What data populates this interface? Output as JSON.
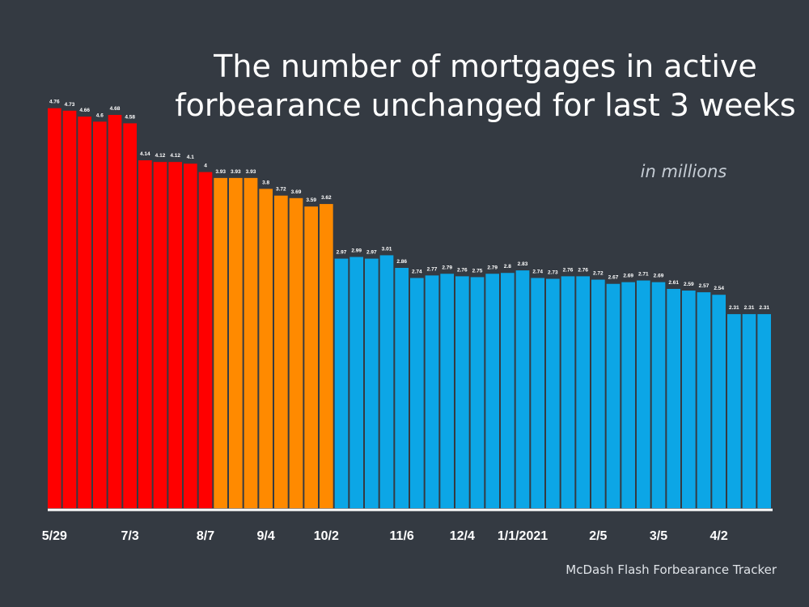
{
  "chart_data": {
    "type": "bar",
    "title_lines": [
      "The number of mortgages in active",
      "forbearance unchanged for last 3 weeks"
    ],
    "subtitle": "in millions",
    "source": "McDash Flash Forbearance Tracker",
    "values": [
      4.76,
      4.73,
      4.66,
      4.6,
      4.68,
      4.58,
      4.14,
      4.12,
      4.12,
      4.1,
      4,
      3.93,
      3.93,
      3.93,
      3.8,
      3.72,
      3.69,
      3.59,
      3.62,
      2.97,
      2.99,
      2.97,
      3.01,
      2.86,
      2.74,
      2.77,
      2.79,
      2.76,
      2.75,
      2.79,
      2.8,
      2.83,
      2.74,
      2.73,
      2.76,
      2.76,
      2.72,
      2.67,
      2.69,
      2.71,
      2.69,
      2.61,
      2.59,
      2.57,
      2.54,
      2.31,
      2.31,
      2.31
    ],
    "value_labels": [
      "4.76",
      "4.73",
      "4.66",
      "4.6",
      "4.68",
      "4.58",
      "4.14",
      "4.12",
      "4.12",
      "4.1",
      "4",
      "3.93",
      "3.93",
      "3.93",
      "3.8",
      "3.72",
      "3.69",
      "3.59",
      "3.62",
      "2.97",
      "2.99",
      "2.97",
      "3.01",
      "2.86",
      "2.74",
      "2.77",
      "2.79",
      "2.76",
      "2.75",
      "2.79",
      "2.8",
      "2.83",
      "2.74",
      "2.73",
      "2.76",
      "2.76",
      "2.72",
      "2.67",
      "2.69",
      "2.71",
      "2.69",
      "2.61",
      "2.59",
      "2.57",
      "2.54",
      "2.31",
      "2.31",
      "2.31"
    ],
    "bar_colors": [
      "#ff0000",
      "#ff0000",
      "#ff0000",
      "#ff0000",
      "#ff0000",
      "#ff0000",
      "#ff0000",
      "#ff0000",
      "#ff0000",
      "#ff0000",
      "#ff0000",
      "#ff8a00",
      "#ff8a00",
      "#ff8a00",
      "#ff8a00",
      "#ff8a00",
      "#ff8a00",
      "#ff8a00",
      "#ff8a00",
      "#0ca6e6",
      "#0ca6e6",
      "#0ca6e6",
      "#0ca6e6",
      "#0ca6e6",
      "#0ca6e6",
      "#0ca6e6",
      "#0ca6e6",
      "#0ca6e6",
      "#0ca6e6",
      "#0ca6e6",
      "#0ca6e6",
      "#0ca6e6",
      "#0ca6e6",
      "#0ca6e6",
      "#0ca6e6",
      "#0ca6e6",
      "#0ca6e6",
      "#0ca6e6",
      "#0ca6e6",
      "#0ca6e6",
      "#0ca6e6",
      "#0ca6e6",
      "#0ca6e6",
      "#0ca6e6",
      "#0ca6e6",
      "#0ca6e6",
      "#0ca6e6",
      "#0ca6e6"
    ],
    "x_tick_labels": [
      {
        "index": 0,
        "label": "5/29"
      },
      {
        "index": 5,
        "label": "7/3"
      },
      {
        "index": 10,
        "label": "8/7"
      },
      {
        "index": 14,
        "label": "9/4"
      },
      {
        "index": 18,
        "label": "10/2"
      },
      {
        "index": 23,
        "label": "11/6"
      },
      {
        "index": 27,
        "label": "12/4"
      },
      {
        "index": 31,
        "label": "1/1/2021"
      },
      {
        "index": 36,
        "label": "2/5"
      },
      {
        "index": 40,
        "label": "3/5"
      },
      {
        "index": 44,
        "label": "4/2"
      }
    ],
    "ylim": [
      0,
      5.2
    ],
    "grid": false,
    "legend": "none"
  }
}
